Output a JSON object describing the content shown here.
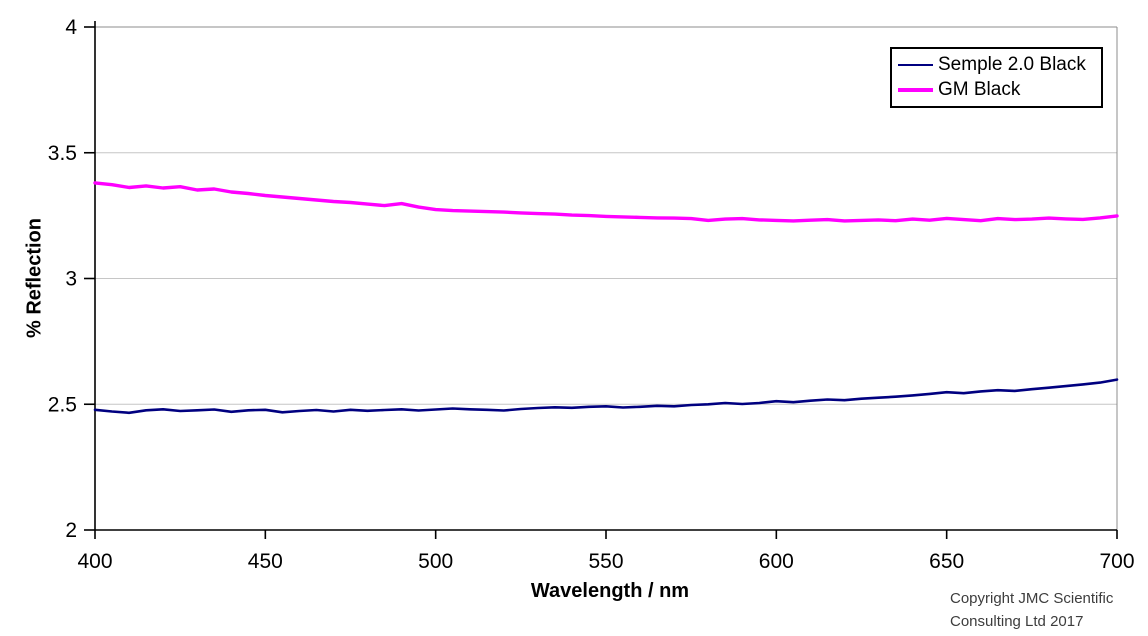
{
  "chart_data": {
    "type": "line",
    "title": "",
    "xlabel": "Wavelength / nm",
    "ylabel": "% Reflection",
    "xlim": [
      400,
      700
    ],
    "ylim": [
      2,
      4
    ],
    "x_ticks": [
      400,
      450,
      500,
      550,
      600,
      650,
      700
    ],
    "x_tick_labels": [
      "400",
      "450",
      "500",
      "550",
      "600",
      "650",
      "700"
    ],
    "y_ticks": [
      2,
      2.5,
      3,
      3.5,
      4
    ],
    "y_tick_labels": [
      "2",
      "2.5",
      "3",
      "3.5",
      "4"
    ],
    "grid": "horizontal-major",
    "legend_position": "top-right-inside",
    "x_start": 400,
    "x_step": 5,
    "x_unit": "nm",
    "series": [
      {
        "name": "Semple 2.0 Black",
        "color": "#000080",
        "line_width": 2.6,
        "values": [
          2.478,
          2.471,
          2.466,
          2.476,
          2.48,
          2.473,
          2.476,
          2.479,
          2.47,
          2.476,
          2.478,
          2.468,
          2.473,
          2.477,
          2.471,
          2.478,
          2.474,
          2.477,
          2.48,
          2.475,
          2.479,
          2.483,
          2.48,
          2.478,
          2.475,
          2.481,
          2.485,
          2.488,
          2.486,
          2.49,
          2.492,
          2.487,
          2.49,
          2.494,
          2.492,
          2.497,
          2.5,
          2.505,
          2.501,
          2.505,
          2.512,
          2.508,
          2.514,
          2.519,
          2.516,
          2.522,
          2.526,
          2.53,
          2.535,
          2.541,
          2.548,
          2.544,
          2.551,
          2.556,
          2.553,
          2.56,
          2.566,
          2.572,
          2.579,
          2.586,
          2.598
        ]
      },
      {
        "name": "GM Black",
        "color": "#FF00FF",
        "line_width": 3.4,
        "values": [
          3.38,
          3.373,
          3.362,
          3.368,
          3.36,
          3.365,
          3.352,
          3.356,
          3.344,
          3.338,
          3.33,
          3.324,
          3.318,
          3.312,
          3.306,
          3.302,
          3.296,
          3.29,
          3.298,
          3.284,
          3.274,
          3.27,
          3.268,
          3.266,
          3.264,
          3.261,
          3.258,
          3.256,
          3.252,
          3.25,
          3.247,
          3.245,
          3.243,
          3.241,
          3.24,
          3.238,
          3.231,
          3.236,
          3.238,
          3.233,
          3.231,
          3.229,
          3.232,
          3.234,
          3.229,
          3.231,
          3.233,
          3.23,
          3.236,
          3.232,
          3.239,
          3.234,
          3.23,
          3.238,
          3.234,
          3.236,
          3.24,
          3.237,
          3.235,
          3.241,
          3.249
        ]
      }
    ]
  },
  "colors": {
    "background": "#ffffff",
    "axis": "#000000",
    "gridline": "#c6c6c6",
    "plot_border": "#8c8c8c",
    "tick_text": "#000000",
    "copyright_text": "#3d3d3d"
  },
  "footer": {
    "copyright_line1": "Copyright JMC Scientific",
    "copyright_line2": "Consulting Ltd 2017"
  }
}
